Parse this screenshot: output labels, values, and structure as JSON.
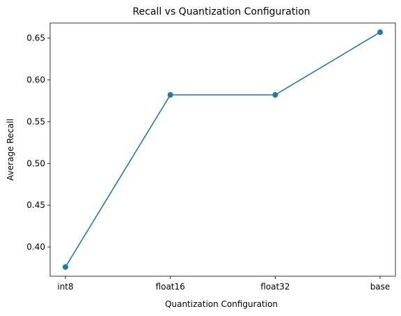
{
  "chart_data": {
    "type": "line",
    "title": "Recall vs Quantization Configuration",
    "xlabel": "Quantization Configuration",
    "ylabel": "Average Recall",
    "categories": [
      "int8",
      "float16",
      "float32",
      "base"
    ],
    "series": [
      {
        "values": [
          0.376,
          0.582,
          0.582,
          0.657
        ],
        "color": "#1f77b4",
        "marker": "circle"
      }
    ],
    "ylim": [
      0.365,
      0.668
    ],
    "yticks": [
      "0.40",
      "0.45",
      "0.50",
      "0.55",
      "0.60",
      "0.65"
    ],
    "grid": false,
    "legend": "none"
  }
}
